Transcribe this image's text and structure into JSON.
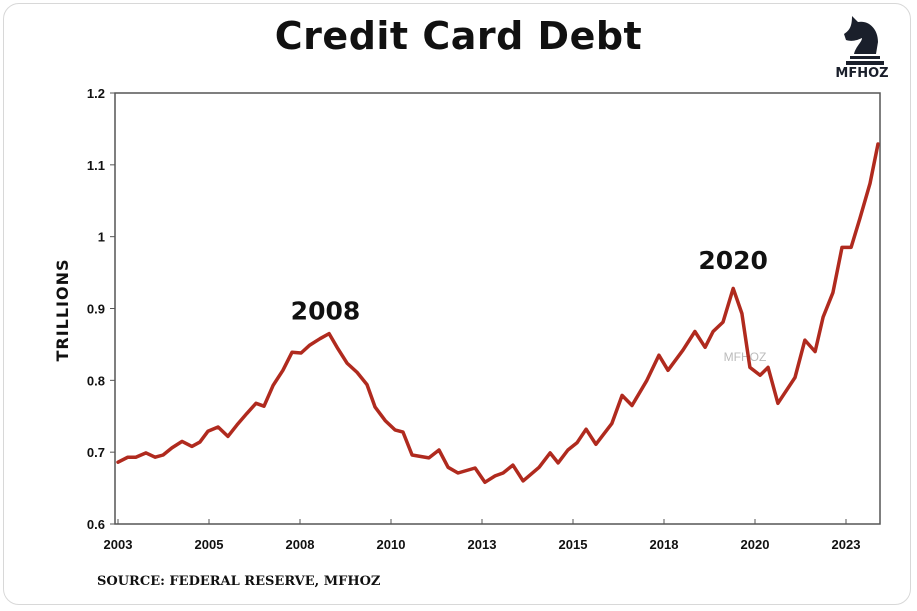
{
  "chart_data": {
    "type": "line",
    "title": "Credit Card Debt",
    "xlabel": "",
    "ylabel": "TRILLIONS",
    "ylim": [
      0.6,
      1.2
    ],
    "yticks": [
      "0.6",
      "0.7",
      "0.8",
      "0.9",
      "1",
      "1.1",
      "1.2"
    ],
    "xlim": [
      2003,
      2024.3
    ],
    "xticks": [
      {
        "pos": 2003,
        "label": "2003"
      },
      {
        "pos": 2005.5,
        "label": "2005"
      },
      {
        "pos": 2008,
        "label": "2008"
      },
      {
        "pos": 2010.5,
        "label": "2010"
      },
      {
        "pos": 2013,
        "label": "2013"
      },
      {
        "pos": 2015.5,
        "label": "2015"
      },
      {
        "pos": 2018,
        "label": "2018"
      },
      {
        "pos": 2020.5,
        "label": "2020"
      },
      {
        "pos": 2023,
        "label": "2023"
      }
    ],
    "grid": false,
    "line_color": "#b02a1e",
    "series": [
      {
        "x": [
          2003.0,
          2003.27,
          2003.49,
          2003.77,
          2004.02,
          2004.24,
          2004.48,
          2004.76,
          2005.03,
          2005.25,
          2005.47,
          2005.75,
          2006.02,
          2006.27,
          2006.54,
          2006.79,
          2007.01,
          2007.26,
          2007.53,
          2007.78,
          2008.03,
          2008.27,
          2008.55,
          2008.8,
          2009.04,
          2009.29,
          2009.57,
          2009.84,
          2010.06,
          2010.34,
          2010.61,
          2010.83,
          2011.08,
          2011.54,
          2011.82,
          2012.07,
          2012.34,
          2012.81,
          2013.08,
          2013.36,
          2013.58,
          2013.85,
          2014.13,
          2014.57,
          2014.87,
          2015.09,
          2015.36,
          2015.61,
          2015.86,
          2016.13,
          2016.57,
          2016.85,
          2017.12,
          2017.53,
          2017.86,
          2018.11,
          2018.52,
          2018.85,
          2019.13,
          2019.35,
          2019.62,
          2019.9,
          2020.14,
          2020.36,
          2020.64,
          2020.86,
          2021.13,
          2021.6,
          2021.87,
          2022.15,
          2022.37,
          2022.64,
          2022.89,
          2023.14,
          2023.38,
          2023.66,
          2023.88
        ],
        "values": [
          0.686,
          0.693,
          0.693,
          0.699,
          0.693,
          0.696,
          0.706,
          0.715,
          0.708,
          0.714,
          0.729,
          0.735,
          0.722,
          0.738,
          0.754,
          0.768,
          0.764,
          0.793,
          0.814,
          0.839,
          0.838,
          0.849,
          0.858,
          0.865,
          0.844,
          0.824,
          0.811,
          0.794,
          0.763,
          0.744,
          0.731,
          0.728,
          0.696,
          0.692,
          0.703,
          0.679,
          0.671,
          0.678,
          0.658,
          0.667,
          0.671,
          0.682,
          0.66,
          0.679,
          0.699,
          0.685,
          0.703,
          0.713,
          0.732,
          0.711,
          0.74,
          0.779,
          0.765,
          0.8,
          0.835,
          0.814,
          0.842,
          0.868,
          0.846,
          0.868,
          0.881,
          0.928,
          0.893,
          0.818,
          0.807,
          0.818,
          0.768,
          0.804,
          0.856,
          0.84,
          0.888,
          0.922,
          0.985,
          0.985,
          1.025,
          1.074,
          1.129
        ]
      }
    ],
    "annotations": [
      {
        "text": "2008",
        "x": 2008.7,
        "y": 0.885
      },
      {
        "text": "2020",
        "x": 2019.9,
        "y": 0.955
      }
    ],
    "watermark": "MFHOZ"
  },
  "logo": {
    "text": "MFHOZ",
    "icon": "knight-chess-piece-icon"
  },
  "source": "SOURCE: FEDERAL RESERVE, MFHOZ"
}
